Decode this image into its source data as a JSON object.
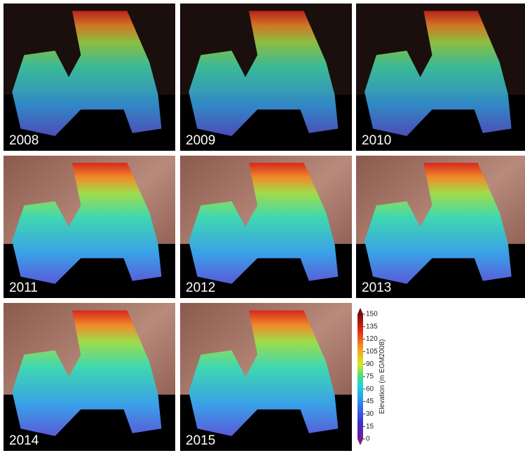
{
  "panels": [
    {
      "year": "2008"
    },
    {
      "year": "2009"
    },
    {
      "year": "2010"
    },
    {
      "year": "2011"
    },
    {
      "year": "2012"
    },
    {
      "year": "2013"
    },
    {
      "year": "2014"
    },
    {
      "year": "2015"
    }
  ],
  "colorbar": {
    "label": "Elevation (m EGM2008)",
    "lim": [
      0,
      150
    ],
    "ticks": [
      0,
      15,
      30,
      45,
      60,
      75,
      90,
      105,
      120,
      135,
      150
    ]
  }
}
